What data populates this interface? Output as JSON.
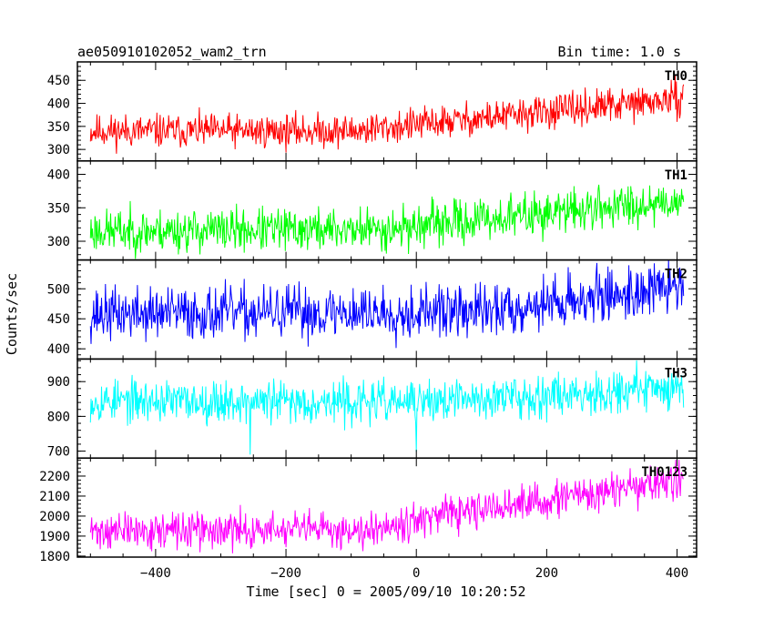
{
  "header": {
    "title": "ae050910102052_wam2_trn",
    "bin_time": "Bin time: 1.0 s"
  },
  "chart_data": {
    "type": "line",
    "xlabel": "Time [sec] 0 = 2005/09/10 10:20:52",
    "ylabel": "Counts/sec",
    "xlim": [
      -520,
      430
    ],
    "x_range": [
      -500,
      410
    ],
    "x_ticks": [
      -400,
      -200,
      0,
      200,
      400
    ],
    "x_tick_labels": [
      "−400",
      "−200",
      "0",
      "200",
      "400"
    ],
    "panels": [
      {
        "name": "TH0",
        "color": "#ff0000",
        "ylim": [
          275,
          490
        ],
        "y_ticks": [
          300,
          350,
          400,
          450
        ],
        "y_tick_labels": [
          "300",
          "350",
          "400",
          "450"
        ],
        "trend": [
          [
            -500,
            340
          ],
          [
            -100,
            340
          ],
          [
            410,
            410
          ]
        ],
        "noise": 18,
        "seed": 11,
        "dips": []
      },
      {
        "name": "TH1",
        "color": "#00ff00",
        "ylim": [
          272,
          420
        ],
        "y_ticks": [
          300,
          350,
          400
        ],
        "y_tick_labels": [
          "300",
          "350",
          "400"
        ],
        "trend": [
          [
            -500,
            315
          ],
          [
            -50,
            318
          ],
          [
            410,
            362
          ]
        ],
        "noise": 16,
        "seed": 23,
        "dips": []
      },
      {
        "name": "TH2",
        "color": "#0000ff",
        "ylim": [
          383,
          548
        ],
        "y_ticks": [
          400,
          450,
          500
        ],
        "y_tick_labels": [
          "400",
          "450",
          "500"
        ],
        "trend": [
          [
            -500,
            458
          ],
          [
            100,
            462
          ],
          [
            410,
            505
          ]
        ],
        "noise": 22,
        "seed": 37,
        "dips": []
      },
      {
        "name": "TH3",
        "color": "#00ffff",
        "ylim": [
          680,
          965
        ],
        "y_ticks": [
          700,
          800,
          900
        ],
        "y_tick_labels": [
          "700",
          "800",
          "900"
        ],
        "trend": [
          [
            -500,
            845
          ],
          [
            0,
            840
          ],
          [
            410,
            885
          ]
        ],
        "noise": 30,
        "seed": 53,
        "dips": [
          [
            -255,
            690
          ],
          [
            0,
            698
          ]
        ]
      },
      {
        "name": "TH0123",
        "color": "#ff00ff",
        "ylim": [
          1795,
          2290
        ],
        "y_ticks": [
          1800,
          1900,
          2000,
          2100,
          2200
        ],
        "y_tick_labels": [
          "1800",
          "1900",
          "2000",
          "2100",
          "2200"
        ],
        "trend": [
          [
            -500,
            1925
          ],
          [
            -100,
            1930
          ],
          [
            410,
            2180
          ]
        ],
        "noise": 45,
        "seed": 71,
        "dips": []
      }
    ]
  }
}
